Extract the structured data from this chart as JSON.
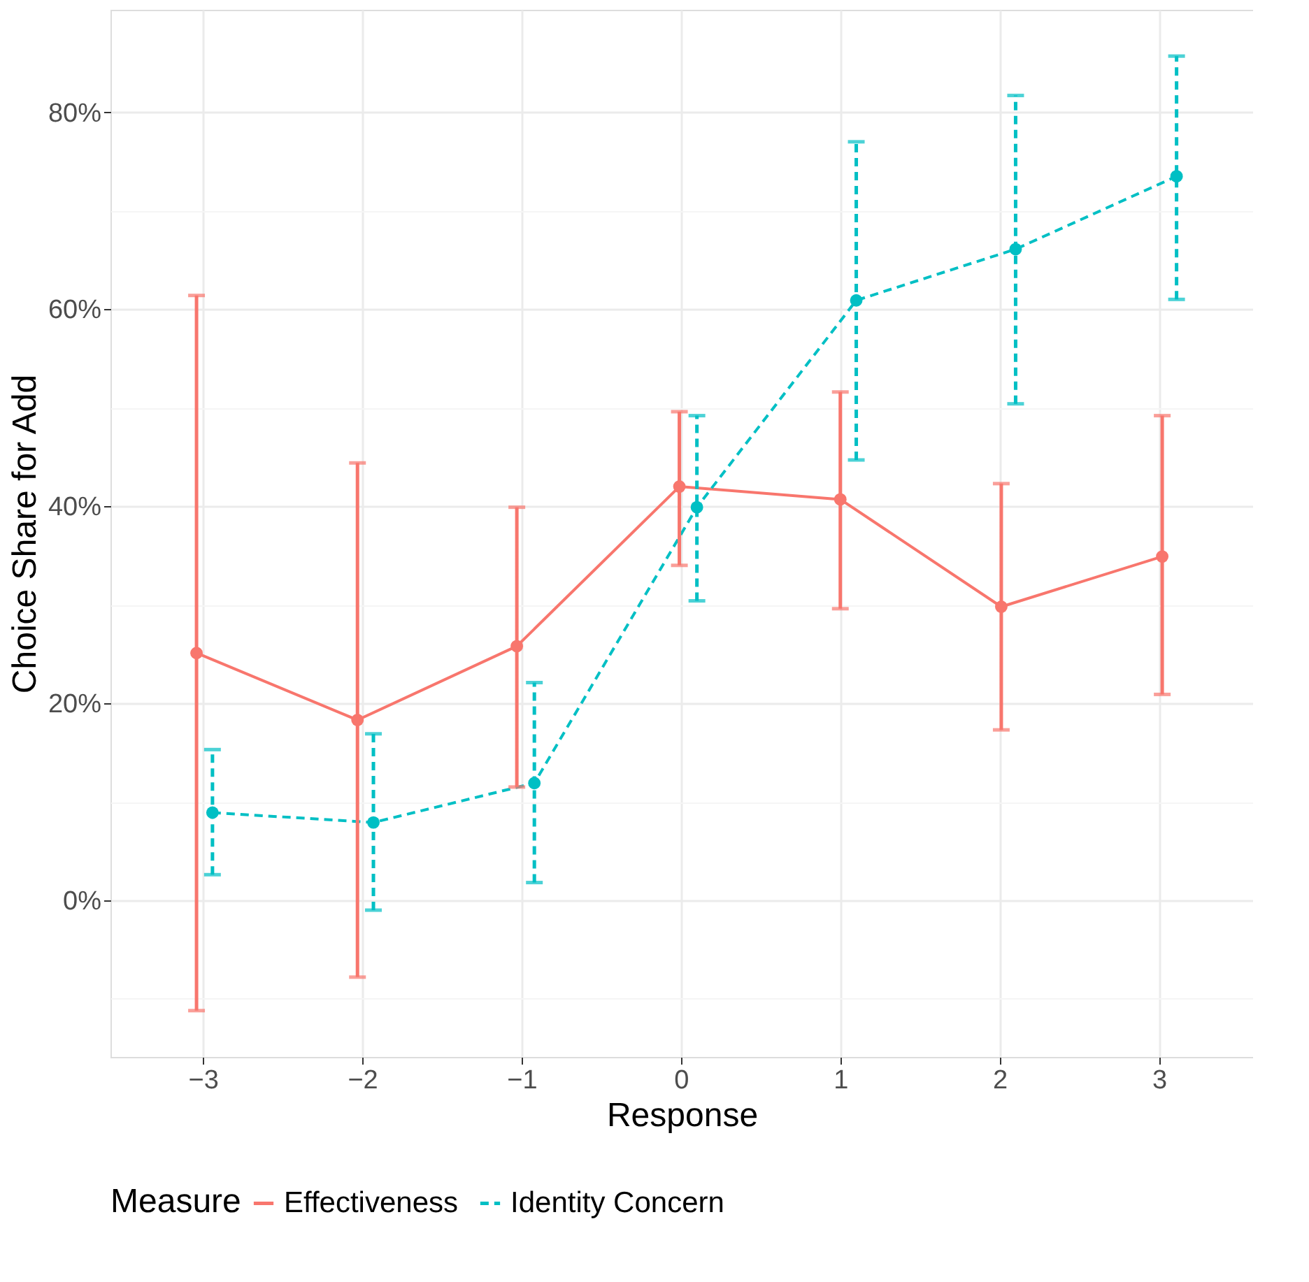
{
  "chart_data": {
    "type": "line",
    "xlabel": "Response",
    "ylabel": "Choice Share for Add",
    "legend_title": "Measure",
    "legend": "bottom",
    "grid": true,
    "marker": "circle",
    "xlim": [
      -3.58,
      3.59
    ],
    "xticks": [
      {
        "value": -3,
        "label": "−3"
      },
      {
        "value": -2,
        "label": "−2"
      },
      {
        "value": -1,
        "label": "−1"
      },
      0,
      1,
      2,
      3
    ],
    "ylim": [
      -15.9,
      90.4
    ],
    "yticks": [
      {
        "value": -10,
        "label": null
      },
      {
        "value": 0,
        "label": "0%"
      },
      {
        "value": 10,
        "label": null
      },
      {
        "value": 20,
        "label": "20%"
      },
      {
        "value": 30,
        "label": null
      },
      {
        "value": 40,
        "label": "40%"
      },
      {
        "value": 50,
        "label": null
      },
      {
        "value": 60,
        "label": "60%"
      },
      {
        "value": 70,
        "label": null
      },
      {
        "value": 80,
        "label": "80%"
      }
    ],
    "series": [
      {
        "name": "Effectiveness",
        "color": "#f8766d",
        "line_style": "solid",
        "x": [
          -3.04,
          -2.03,
          -1.03,
          -0.01,
          1.0,
          2.01,
          3.02
        ],
        "values": [
          25.1,
          18.3,
          25.8,
          42.0,
          40.7,
          29.8,
          34.9
        ],
        "errors": [
          [
            -11.2,
            61.4
          ],
          [
            -7.8,
            44.4
          ],
          [
            11.5,
            39.9
          ],
          [
            34.0,
            49.6
          ],
          [
            29.6,
            51.6
          ],
          [
            17.3,
            42.3
          ],
          [
            20.9,
            49.2
          ]
        ]
      },
      {
        "name": "Identity Concern",
        "color": "#00bfc4",
        "line_style": "dashed",
        "x": [
          -2.94,
          -1.93,
          -0.92,
          0.1,
          1.1,
          2.1,
          3.11
        ],
        "values": [
          8.9,
          7.9,
          11.9,
          39.9,
          60.9,
          66.1,
          73.5
        ],
        "errors": [
          [
            2.6,
            15.3
          ],
          [
            -1.0,
            16.9
          ],
          [
            1.8,
            22.1
          ],
          [
            30.4,
            49.2
          ],
          [
            44.7,
            77.0
          ],
          [
            50.4,
            81.7
          ],
          [
            61.0,
            85.7
          ]
        ]
      }
    ]
  }
}
